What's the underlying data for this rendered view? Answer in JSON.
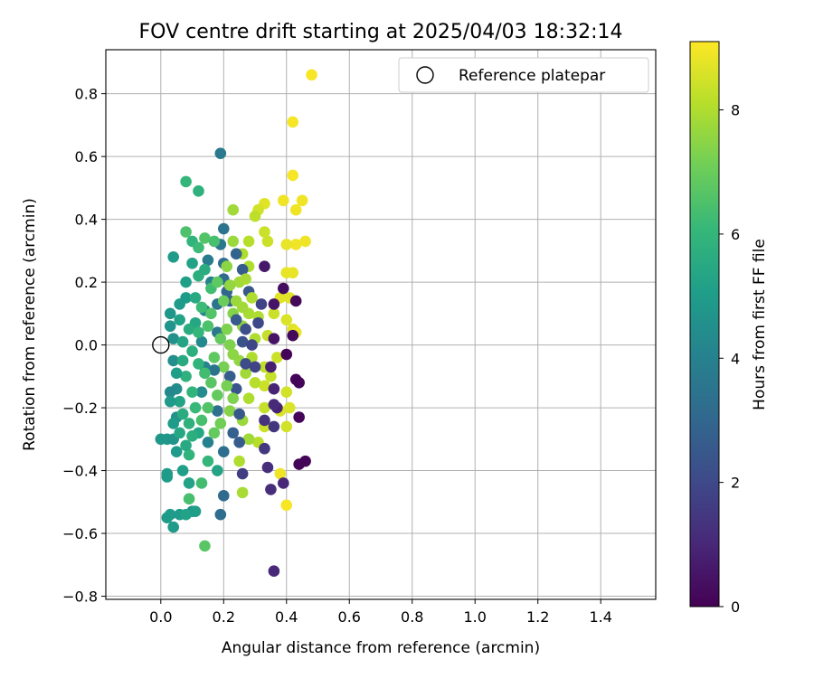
{
  "chart_data": {
    "type": "scatter",
    "title": "FOV centre drift starting at 2025/04/03 18:32:14",
    "xlabel": "Angular distance from reference (arcmin)",
    "ylabel": "Rotation from reference (arcmin)",
    "xlim": [
      -0.175,
      1.575
    ],
    "ylim": [
      -0.81,
      0.94
    ],
    "xticks": [
      0.0,
      0.2,
      0.4,
      0.6,
      0.8,
      1.0,
      1.2,
      1.4
    ],
    "xtick_labels": [
      "0.0",
      "0.2",
      "0.4",
      "0.6",
      "0.8",
      "1.0",
      "1.2",
      "1.4"
    ],
    "yticks": [
      -0.8,
      -0.6,
      -0.4,
      -0.2,
      0.0,
      0.2,
      0.4,
      0.6,
      0.8
    ],
    "ytick_labels": [
      "−0.8",
      "−0.6",
      "−0.4",
      "−0.2",
      "0.0",
      "0.2",
      "0.4",
      "0.6",
      "0.8"
    ],
    "grid": true,
    "legend": {
      "placement": "top-right",
      "entries": [
        "Reference platepar"
      ]
    },
    "reference_point": {
      "x": 0.0,
      "y": 0.0,
      "marker": "open-circle"
    },
    "colorbar": {
      "label": "Hours from first FF file",
      "range": [
        0,
        9.1
      ],
      "ticks": [
        0,
        2,
        4,
        6,
        8
      ],
      "tick_labels": [
        "0",
        "2",
        "4",
        "6",
        "8"
      ],
      "colormap": "viridis",
      "stops": [
        "#440154",
        "#482878",
        "#3e4a89",
        "#31688e",
        "#26828e",
        "#1f9e89",
        "#35b779",
        "#6ece58",
        "#b5de2b",
        "#fde725"
      ]
    },
    "points": [
      {
        "x": 0.48,
        "y": 0.86,
        "h": 9.0
      },
      {
        "x": 0.42,
        "y": 0.71,
        "h": 9.0
      },
      {
        "x": 0.42,
        "y": 0.54,
        "h": 9.0
      },
      {
        "x": 0.45,
        "y": 0.46,
        "h": 8.9
      },
      {
        "x": 0.43,
        "y": 0.43,
        "h": 8.9
      },
      {
        "x": 0.39,
        "y": 0.46,
        "h": 8.9
      },
      {
        "x": 0.33,
        "y": 0.45,
        "h": 8.7
      },
      {
        "x": 0.31,
        "y": 0.43,
        "h": 8.5
      },
      {
        "x": 0.46,
        "y": 0.33,
        "h": 8.9
      },
      {
        "x": 0.43,
        "y": 0.32,
        "h": 8.9
      },
      {
        "x": 0.4,
        "y": 0.32,
        "h": 8.8
      },
      {
        "x": 0.4,
        "y": 0.23,
        "h": 8.8
      },
      {
        "x": 0.42,
        "y": 0.23,
        "h": 8.8
      },
      {
        "x": 0.38,
        "y": 0.15,
        "h": 8.7
      },
      {
        "x": 0.41,
        "y": 0.15,
        "h": 8.7
      },
      {
        "x": 0.4,
        "y": 0.08,
        "h": 8.6
      },
      {
        "x": 0.42,
        "y": 0.05,
        "h": 8.7
      },
      {
        "x": 0.43,
        "y": 0.04,
        "h": 8.8
      },
      {
        "x": 0.36,
        "y": 0.1,
        "h": 8.4
      },
      {
        "x": 0.34,
        "y": 0.03,
        "h": 8.3
      },
      {
        "x": 0.37,
        "y": -0.04,
        "h": 8.4
      },
      {
        "x": 0.33,
        "y": -0.07,
        "h": 8.2
      },
      {
        "x": 0.35,
        "y": -0.1,
        "h": 8.3
      },
      {
        "x": 0.33,
        "y": -0.13,
        "h": 8.4
      },
      {
        "x": 0.4,
        "y": -0.15,
        "h": 8.5
      },
      {
        "x": 0.38,
        "y": -0.21,
        "h": 8.6
      },
      {
        "x": 0.41,
        "y": -0.2,
        "h": 8.6
      },
      {
        "x": 0.4,
        "y": -0.26,
        "h": 8.5
      },
      {
        "x": 0.33,
        "y": -0.26,
        "h": 8.4
      },
      {
        "x": 0.33,
        "y": -0.2,
        "h": 8.3
      },
      {
        "x": 0.38,
        "y": -0.41,
        "h": 8.9
      },
      {
        "x": 0.4,
        "y": -0.51,
        "h": 9.0
      },
      {
        "x": 0.28,
        "y": -0.17,
        "h": 8.0
      },
      {
        "x": 0.31,
        "y": -0.31,
        "h": 8.1
      },
      {
        "x": 0.28,
        "y": -0.3,
        "h": 7.8
      },
      {
        "x": 0.26,
        "y": -0.47,
        "h": 7.9
      },
      {
        "x": 0.26,
        "y": -0.41,
        "h": 1.6
      },
      {
        "x": 0.33,
        "y": -0.33,
        "h": 1.5
      },
      {
        "x": 0.34,
        "y": -0.39,
        "h": 1.2
      },
      {
        "x": 0.35,
        "y": -0.46,
        "h": 1.2
      },
      {
        "x": 0.36,
        "y": -0.72,
        "h": 1.0
      },
      {
        "x": 0.39,
        "y": -0.44,
        "h": 1.0
      },
      {
        "x": 0.46,
        "y": -0.37,
        "h": 0.1
      },
      {
        "x": 0.44,
        "y": -0.38,
        "h": 0.1
      },
      {
        "x": 0.44,
        "y": -0.23,
        "h": 0.1
      },
      {
        "x": 0.43,
        "y": -0.11,
        "h": 0.1
      },
      {
        "x": 0.44,
        "y": -0.12,
        "h": 0.1
      },
      {
        "x": 0.4,
        "y": -0.03,
        "h": 0.1
      },
      {
        "x": 0.42,
        "y": 0.03,
        "h": 0.2
      },
      {
        "x": 0.43,
        "y": 0.14,
        "h": 0.2
      },
      {
        "x": 0.39,
        "y": 0.18,
        "h": 0.3
      },
      {
        "x": 0.36,
        "y": 0.13,
        "h": 0.5
      },
      {
        "x": 0.33,
        "y": 0.25,
        "h": 0.6
      },
      {
        "x": 0.36,
        "y": 0.02,
        "h": 0.5
      },
      {
        "x": 0.35,
        "y": -0.07,
        "h": 0.8
      },
      {
        "x": 0.36,
        "y": -0.14,
        "h": 0.9
      },
      {
        "x": 0.37,
        "y": -0.2,
        "h": 0.9
      },
      {
        "x": 0.33,
        "y": -0.24,
        "h": 1.3
      },
      {
        "x": 0.36,
        "y": -0.26,
        "h": 1.4
      },
      {
        "x": 0.36,
        "y": -0.19,
        "h": 1.1
      },
      {
        "x": 0.33,
        "y": 0.36,
        "h": 8.4
      },
      {
        "x": 0.34,
        "y": 0.33,
        "h": 8.4
      },
      {
        "x": 0.3,
        "y": 0.41,
        "h": 8.2
      },
      {
        "x": 0.28,
        "y": 0.33,
        "h": 8.1
      },
      {
        "x": 0.26,
        "y": 0.29,
        "h": 8.0
      },
      {
        "x": 0.28,
        "y": 0.25,
        "h": 8.0
      },
      {
        "x": 0.23,
        "y": 0.43,
        "h": 7.8
      },
      {
        "x": 0.23,
        "y": 0.33,
        "h": 7.7
      },
      {
        "x": 0.25,
        "y": 0.2,
        "h": 7.8
      },
      {
        "x": 0.28,
        "y": 0.1,
        "h": 7.9
      },
      {
        "x": 0.31,
        "y": 0.09,
        "h": 8.0
      },
      {
        "x": 0.3,
        "y": 0.02,
        "h": 8.0
      },
      {
        "x": 0.29,
        "y": -0.04,
        "h": 8.0
      },
      {
        "x": 0.3,
        "y": -0.12,
        "h": 8.1
      },
      {
        "x": 0.27,
        "y": -0.09,
        "h": 7.8
      },
      {
        "x": 0.25,
        "y": -0.05,
        "h": 7.6
      },
      {
        "x": 0.26,
        "y": 0.06,
        "h": 7.6
      },
      {
        "x": 0.23,
        "y": 0.1,
        "h": 7.4
      },
      {
        "x": 0.22,
        "y": 0.0,
        "h": 7.3
      },
      {
        "x": 0.2,
        "y": -0.07,
        "h": 7.2
      },
      {
        "x": 0.22,
        "y": -0.21,
        "h": 7.4
      },
      {
        "x": 0.26,
        "y": -0.24,
        "h": 7.7
      },
      {
        "x": 0.28,
        "y": -0.3,
        "h": 7.8
      },
      {
        "x": 0.25,
        "y": -0.37,
        "h": 8.0
      },
      {
        "x": 0.19,
        "y": 0.61,
        "h": 3.7
      },
      {
        "x": 0.19,
        "y": 0.32,
        "h": 3.6
      },
      {
        "x": 0.2,
        "y": 0.37,
        "h": 3.5
      },
      {
        "x": 0.2,
        "y": 0.26,
        "h": 3.3
      },
      {
        "x": 0.2,
        "y": 0.21,
        "h": 3.2
      },
      {
        "x": 0.21,
        "y": 0.17,
        "h": 3.0
      },
      {
        "x": 0.24,
        "y": 0.29,
        "h": 2.9
      },
      {
        "x": 0.26,
        "y": 0.24,
        "h": 2.7
      },
      {
        "x": 0.28,
        "y": 0.17,
        "h": 2.5
      },
      {
        "x": 0.22,
        "y": 0.14,
        "h": 2.8
      },
      {
        "x": 0.24,
        "y": 0.08,
        "h": 2.6
      },
      {
        "x": 0.26,
        "y": 0.01,
        "h": 2.3
      },
      {
        "x": 0.22,
        "y": -0.1,
        "h": 2.7
      },
      {
        "x": 0.24,
        "y": -0.14,
        "h": 2.4
      },
      {
        "x": 0.25,
        "y": -0.22,
        "h": 2.5
      },
      {
        "x": 0.23,
        "y": -0.28,
        "h": 2.8
      },
      {
        "x": 0.25,
        "y": -0.31,
        "h": 2.6
      },
      {
        "x": 0.2,
        "y": -0.48,
        "h": 3.1
      },
      {
        "x": 0.19,
        "y": -0.54,
        "h": 3.2
      },
      {
        "x": 0.2,
        "y": -0.34,
        "h": 3.3
      },
      {
        "x": 0.18,
        "y": -0.21,
        "h": 3.4
      },
      {
        "x": 0.17,
        "y": -0.08,
        "h": 3.5
      },
      {
        "x": 0.18,
        "y": 0.04,
        "h": 3.6
      },
      {
        "x": 0.18,
        "y": 0.13,
        "h": 3.5
      },
      {
        "x": 0.15,
        "y": 0.27,
        "h": 3.8
      },
      {
        "x": 0.16,
        "y": 0.2,
        "h": 4.0
      },
      {
        "x": 0.14,
        "y": 0.11,
        "h": 4.2
      },
      {
        "x": 0.13,
        "y": 0.01,
        "h": 4.3
      },
      {
        "x": 0.14,
        "y": -0.07,
        "h": 4.1
      },
      {
        "x": 0.13,
        "y": -0.15,
        "h": 4.4
      },
      {
        "x": 0.15,
        "y": -0.31,
        "h": 4.0
      },
      {
        "x": 0.1,
        "y": -0.53,
        "h": 4.5
      },
      {
        "x": 0.04,
        "y": -0.58,
        "h": 4.9
      },
      {
        "x": 0.02,
        "y": -0.55,
        "h": 5.0
      },
      {
        "x": 0.03,
        "y": -0.54,
        "h": 5.0
      },
      {
        "x": 0.06,
        "y": -0.54,
        "h": 4.9
      },
      {
        "x": 0.02,
        "y": -0.42,
        "h": 5.0
      },
      {
        "x": 0.02,
        "y": -0.41,
        "h": 5.0
      },
      {
        "x": 0.0,
        "y": -0.3,
        "h": 4.8
      },
      {
        "x": 0.02,
        "y": -0.3,
        "h": 4.8
      },
      {
        "x": 0.04,
        "y": -0.3,
        "h": 4.7
      },
      {
        "x": 0.05,
        "y": -0.34,
        "h": 4.9
      },
      {
        "x": 0.07,
        "y": -0.4,
        "h": 5.1
      },
      {
        "x": 0.09,
        "y": -0.44,
        "h": 5.2
      },
      {
        "x": 0.08,
        "y": -0.54,
        "h": 5.2
      },
      {
        "x": 0.11,
        "y": -0.53,
        "h": 5.1
      },
      {
        "x": 0.14,
        "y": -0.64,
        "h": 6.7
      },
      {
        "x": 0.09,
        "y": -0.49,
        "h": 6.4
      },
      {
        "x": 0.13,
        "y": -0.44,
        "h": 6.3
      },
      {
        "x": 0.15,
        "y": -0.37,
        "h": 6.0
      },
      {
        "x": 0.09,
        "y": -0.35,
        "h": 5.9
      },
      {
        "x": 0.18,
        "y": -0.4,
        "h": 5.3
      },
      {
        "x": 0.12,
        "y": -0.28,
        "h": 5.4
      },
      {
        "x": 0.05,
        "y": -0.23,
        "h": 4.6
      },
      {
        "x": 0.05,
        "y": -0.14,
        "h": 4.4
      },
      {
        "x": 0.03,
        "y": -0.15,
        "h": 4.3
      },
      {
        "x": 0.04,
        "y": -0.05,
        "h": 4.5
      },
      {
        "x": 0.04,
        "y": 0.02,
        "h": 4.6
      },
      {
        "x": 0.03,
        "y": 0.06,
        "h": 4.7
      },
      {
        "x": 0.03,
        "y": 0.1,
        "h": 4.8
      },
      {
        "x": 0.06,
        "y": 0.13,
        "h": 4.9
      },
      {
        "x": 0.08,
        "y": 0.15,
        "h": 5.0
      },
      {
        "x": 0.08,
        "y": 0.2,
        "h": 5.1
      },
      {
        "x": 0.1,
        "y": 0.26,
        "h": 5.2
      },
      {
        "x": 0.04,
        "y": 0.28,
        "h": 5.0
      },
      {
        "x": 0.08,
        "y": 0.36,
        "h": 6.5
      },
      {
        "x": 0.08,
        "y": 0.52,
        "h": 6.0
      },
      {
        "x": 0.12,
        "y": 0.49,
        "h": 5.8
      },
      {
        "x": 0.1,
        "y": 0.33,
        "h": 5.9
      },
      {
        "x": 0.12,
        "y": 0.31,
        "h": 6.2
      },
      {
        "x": 0.14,
        "y": 0.34,
        "h": 6.6
      },
      {
        "x": 0.17,
        "y": 0.33,
        "h": 6.4
      },
      {
        "x": 0.12,
        "y": 0.22,
        "h": 5.7
      },
      {
        "x": 0.14,
        "y": 0.24,
        "h": 5.6
      },
      {
        "x": 0.16,
        "y": 0.18,
        "h": 6.3
      },
      {
        "x": 0.18,
        "y": 0.2,
        "h": 6.8
      },
      {
        "x": 0.2,
        "y": 0.14,
        "h": 7.0
      },
      {
        "x": 0.11,
        "y": 0.15,
        "h": 5.5
      },
      {
        "x": 0.11,
        "y": 0.07,
        "h": 5.4
      },
      {
        "x": 0.09,
        "y": 0.05,
        "h": 5.6
      },
      {
        "x": 0.1,
        "y": -0.02,
        "h": 5.7
      },
      {
        "x": 0.07,
        "y": -0.05,
        "h": 5.5
      },
      {
        "x": 0.08,
        "y": -0.1,
        "h": 5.8
      },
      {
        "x": 0.1,
        "y": -0.15,
        "h": 5.9
      },
      {
        "x": 0.06,
        "y": -0.18,
        "h": 5.3
      },
      {
        "x": 0.07,
        "y": -0.22,
        "h": 5.6
      },
      {
        "x": 0.09,
        "y": -0.25,
        "h": 5.8
      },
      {
        "x": 0.11,
        "y": -0.2,
        "h": 6.1
      },
      {
        "x": 0.13,
        "y": -0.24,
        "h": 6.4
      },
      {
        "x": 0.15,
        "y": -0.2,
        "h": 6.6
      },
      {
        "x": 0.16,
        "y": -0.12,
        "h": 6.7
      },
      {
        "x": 0.18,
        "y": -0.16,
        "h": 6.9
      },
      {
        "x": 0.17,
        "y": -0.04,
        "h": 6.8
      },
      {
        "x": 0.19,
        "y": 0.02,
        "h": 6.9
      },
      {
        "x": 0.15,
        "y": 0.06,
        "h": 6.5
      },
      {
        "x": 0.16,
        "y": 0.1,
        "h": 6.6
      },
      {
        "x": 0.13,
        "y": 0.12,
        "h": 6.2
      },
      {
        "x": 0.12,
        "y": 0.04,
        "h": 6.0
      },
      {
        "x": 0.12,
        "y": -0.06,
        "h": 5.9
      },
      {
        "x": 0.14,
        "y": -0.09,
        "h": 6.3
      },
      {
        "x": 0.06,
        "y": 0.08,
        "h": 5.2
      },
      {
        "x": 0.05,
        "y": -0.09,
        "h": 5.1
      },
      {
        "x": 0.07,
        "y": 0.01,
        "h": 5.3
      },
      {
        "x": 0.06,
        "y": -0.28,
        "h": 5.4
      },
      {
        "x": 0.08,
        "y": -0.32,
        "h": 5.5
      },
      {
        "x": 0.1,
        "y": -0.29,
        "h": 5.7
      },
      {
        "x": 0.04,
        "y": -0.25,
        "h": 5.0
      },
      {
        "x": 0.03,
        "y": -0.18,
        "h": 4.9
      },
      {
        "x": 0.21,
        "y": 0.25,
        "h": 7.5
      },
      {
        "x": 0.22,
        "y": 0.19,
        "h": 7.6
      },
      {
        "x": 0.24,
        "y": 0.14,
        "h": 7.7
      },
      {
        "x": 0.27,
        "y": 0.21,
        "h": 7.9
      },
      {
        "x": 0.29,
        "y": 0.15,
        "h": 8.0
      },
      {
        "x": 0.26,
        "y": 0.12,
        "h": 7.8
      },
      {
        "x": 0.21,
        "y": 0.05,
        "h": 7.3
      },
      {
        "x": 0.23,
        "y": -0.03,
        "h": 7.5
      },
      {
        "x": 0.21,
        "y": -0.13,
        "h": 7.2
      },
      {
        "x": 0.23,
        "y": -0.17,
        "h": 7.3
      },
      {
        "x": 0.19,
        "y": -0.25,
        "h": 7.1
      },
      {
        "x": 0.17,
        "y": -0.28,
        "h": 6.9
      },
      {
        "x": 0.27,
        "y": -0.06,
        "h": 2.1
      },
      {
        "x": 0.29,
        "y": 0.0,
        "h": 1.9
      },
      {
        "x": 0.3,
        "y": -0.07,
        "h": 1.8
      },
      {
        "x": 0.31,
        "y": 0.07,
        "h": 2.0
      },
      {
        "x": 0.32,
        "y": 0.13,
        "h": 1.8
      },
      {
        "x": 0.27,
        "y": 0.05,
        "h": 2.2
      }
    ]
  }
}
